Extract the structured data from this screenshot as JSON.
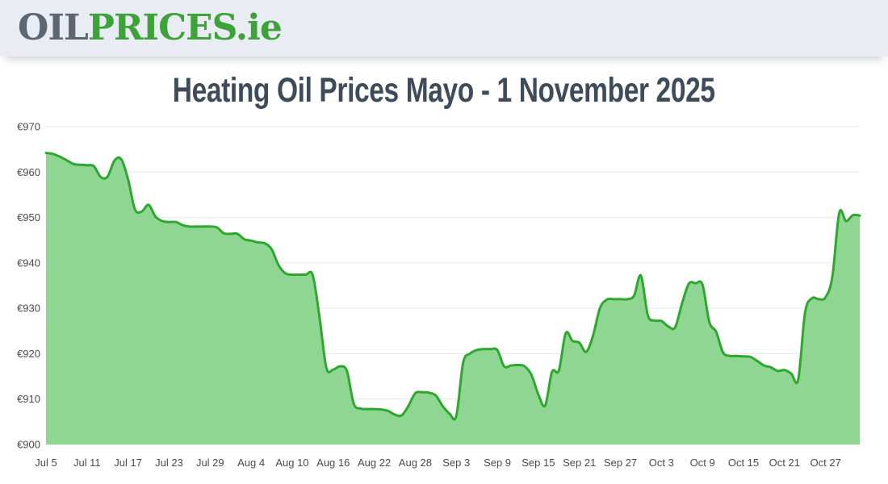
{
  "header": {
    "logo": {
      "part1": "OIL",
      "part2": "PRICES",
      "part3": ".ie"
    }
  },
  "page_title": "Heating Oil Prices Mayo - 1 November 2025",
  "colors": {
    "header_bg": "#e9ecf3",
    "logo_gray": "#5d6774",
    "logo_green": "#3da23a",
    "title_text": "#3e4b5a",
    "line_green": "#2ea72e",
    "fill_green": "#90d693",
    "gridline": "#e6e6e6",
    "axis_label": "#4a4a4a"
  },
  "chart_data": {
    "type": "area",
    "title": "Heating Oil Prices Mayo - 1 November 2025",
    "xlabel": "",
    "ylabel": "",
    "currency": "EUR",
    "ylim": [
      900,
      970
    ],
    "ytick_step": 10,
    "ytick_labels": [
      "€900",
      "€910",
      "€920",
      "€930",
      "€940",
      "€950",
      "€960",
      "€970"
    ],
    "xtick_every_n_points": 6,
    "xtick_labels": [
      "Jul 5",
      "Jul 11",
      "Jul 17",
      "Jul 23",
      "Jul 29",
      "Aug 4",
      "Aug 10",
      "Aug 16",
      "Aug 22",
      "Aug 28",
      "Sep 3",
      "Sep 9",
      "Sep 15",
      "Sep 21",
      "Sep 27",
      "Oct 3",
      "Oct 9",
      "Oct 15",
      "Oct 21",
      "Oct 27"
    ],
    "grid": true,
    "legend": false,
    "x": [
      "Jul 5",
      "Jul 6",
      "Jul 7",
      "Jul 8",
      "Jul 9",
      "Jul 10",
      "Jul 11",
      "Jul 12",
      "Jul 13",
      "Jul 14",
      "Jul 15",
      "Jul 16",
      "Jul 17",
      "Jul 18",
      "Jul 19",
      "Jul 20",
      "Jul 21",
      "Jul 22",
      "Jul 23",
      "Jul 24",
      "Jul 25",
      "Jul 26",
      "Jul 27",
      "Jul 28",
      "Jul 29",
      "Jul 30",
      "Jul 31",
      "Aug 1",
      "Aug 2",
      "Aug 3",
      "Aug 4",
      "Aug 5",
      "Aug 6",
      "Aug 7",
      "Aug 8",
      "Aug 9",
      "Aug 10",
      "Aug 11",
      "Aug 12",
      "Aug 13",
      "Aug 14",
      "Aug 15",
      "Aug 16",
      "Aug 17",
      "Aug 18",
      "Aug 19",
      "Aug 20",
      "Aug 21",
      "Aug 22",
      "Aug 23",
      "Aug 24",
      "Aug 25",
      "Aug 26",
      "Aug 27",
      "Aug 28",
      "Aug 29",
      "Aug 30",
      "Aug 31",
      "Sep 1",
      "Sep 2",
      "Sep 3",
      "Sep 4",
      "Sep 5",
      "Sep 6",
      "Sep 7",
      "Sep 8",
      "Sep 9",
      "Sep 10",
      "Sep 11",
      "Sep 12",
      "Sep 13",
      "Sep 14",
      "Sep 15",
      "Sep 16",
      "Sep 17",
      "Sep 18",
      "Sep 19",
      "Sep 20",
      "Sep 21",
      "Sep 22",
      "Sep 23",
      "Sep 24",
      "Sep 25",
      "Sep 26",
      "Sep 27",
      "Sep 28",
      "Sep 29",
      "Sep 30",
      "Oct 1",
      "Oct 2",
      "Oct 3",
      "Oct 4",
      "Oct 5",
      "Oct 6",
      "Oct 7",
      "Oct 8",
      "Oct 9",
      "Oct 10",
      "Oct 11",
      "Oct 12",
      "Oct 13",
      "Oct 14",
      "Oct 15",
      "Oct 16",
      "Oct 17",
      "Oct 18",
      "Oct 19",
      "Oct 20",
      "Oct 21",
      "Oct 22",
      "Oct 23",
      "Oct 24",
      "Oct 25",
      "Oct 26",
      "Oct 27",
      "Oct 28",
      "Oct 29",
      "Oct 30",
      "Oct 31",
      "Nov 1"
    ],
    "values": [
      964.2,
      964.0,
      963.4,
      962.6,
      961.8,
      961.6,
      961.5,
      961.3,
      958.9,
      959.0,
      962.5,
      962.8,
      958.4,
      951.8,
      951.3,
      952.8,
      950.2,
      949.2,
      949.0,
      949.0,
      948.3,
      948.0,
      948.0,
      948.0,
      948.0,
      947.8,
      946.5,
      946.4,
      946.4,
      945.2,
      944.9,
      944.5,
      944.3,
      943.0,
      939.5,
      937.7,
      937.4,
      937.4,
      937.4,
      937.3,
      928.0,
      916.9,
      916.5,
      917.2,
      916.2,
      909.0,
      907.9,
      907.8,
      907.8,
      907.7,
      907.4,
      906.6,
      906.4,
      908.5,
      911.3,
      911.5,
      911.4,
      910.8,
      908.5,
      906.8,
      906.3,
      918.0,
      920.0,
      920.8,
      921.0,
      921.0,
      920.8,
      917.2,
      917.4,
      917.5,
      917.2,
      915.3,
      911.0,
      908.6,
      916.0,
      916.3,
      924.5,
      922.8,
      922.4,
      920.4,
      924.0,
      930.0,
      931.9,
      932.0,
      932.0,
      932.0,
      932.8,
      937.2,
      928.5,
      927.3,
      927.2,
      926.0,
      925.8,
      931.0,
      935.4,
      935.5,
      935.2,
      927.0,
      924.8,
      920.3,
      919.5,
      919.5,
      919.4,
      919.3,
      918.4,
      917.4,
      917.0,
      916.2,
      916.4,
      915.6,
      914.3,
      929.0,
      932.2,
      932.0,
      932.4,
      937.0,
      951.0,
      949.2,
      950.5,
      950.4
    ]
  }
}
